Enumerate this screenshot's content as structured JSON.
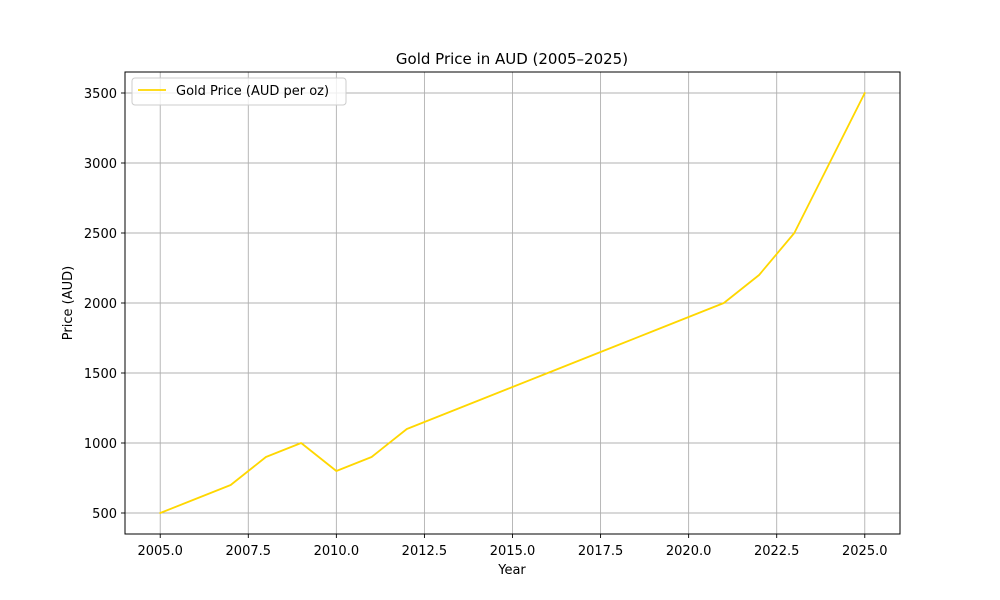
{
  "chart_data": {
    "type": "line",
    "title": "Gold Price in AUD (2005–2025)",
    "xlabel": "Year",
    "ylabel": "Price (AUD)",
    "xlim": [
      2004,
      2026
    ],
    "ylim": [
      350,
      3650
    ],
    "x_ticks": [
      2005,
      2007.5,
      2010,
      2012.5,
      2015,
      2017.5,
      2020,
      2022.5,
      2025
    ],
    "x_tick_labels": [
      "2005.0",
      "2007.5",
      "2010.0",
      "2012.5",
      "2015.0",
      "2017.5",
      "2020.0",
      "2022.5",
      "2025.0"
    ],
    "y_ticks": [
      500,
      1000,
      1500,
      2000,
      2500,
      3000,
      3500
    ],
    "y_tick_labels": [
      "500",
      "1000",
      "1500",
      "2000",
      "2500",
      "3000",
      "3500"
    ],
    "grid": true,
    "legend_position": "top-left",
    "series": [
      {
        "name": "Gold Price (AUD per oz)",
        "color": "#FFD700",
        "x": [
          2005,
          2006,
          2007,
          2008,
          2009,
          2010,
          2011,
          2012,
          2013,
          2014,
          2015,
          2016,
          2017,
          2018,
          2019,
          2020,
          2021,
          2022,
          2023,
          2024,
          2025
        ],
        "values": [
          500,
          600,
          700,
          900,
          1000,
          800,
          900,
          1100,
          1200,
          1300,
          1400,
          1500,
          1600,
          1700,
          1800,
          1900,
          2000,
          2200,
          2500,
          3000,
          3500
        ]
      }
    ]
  }
}
